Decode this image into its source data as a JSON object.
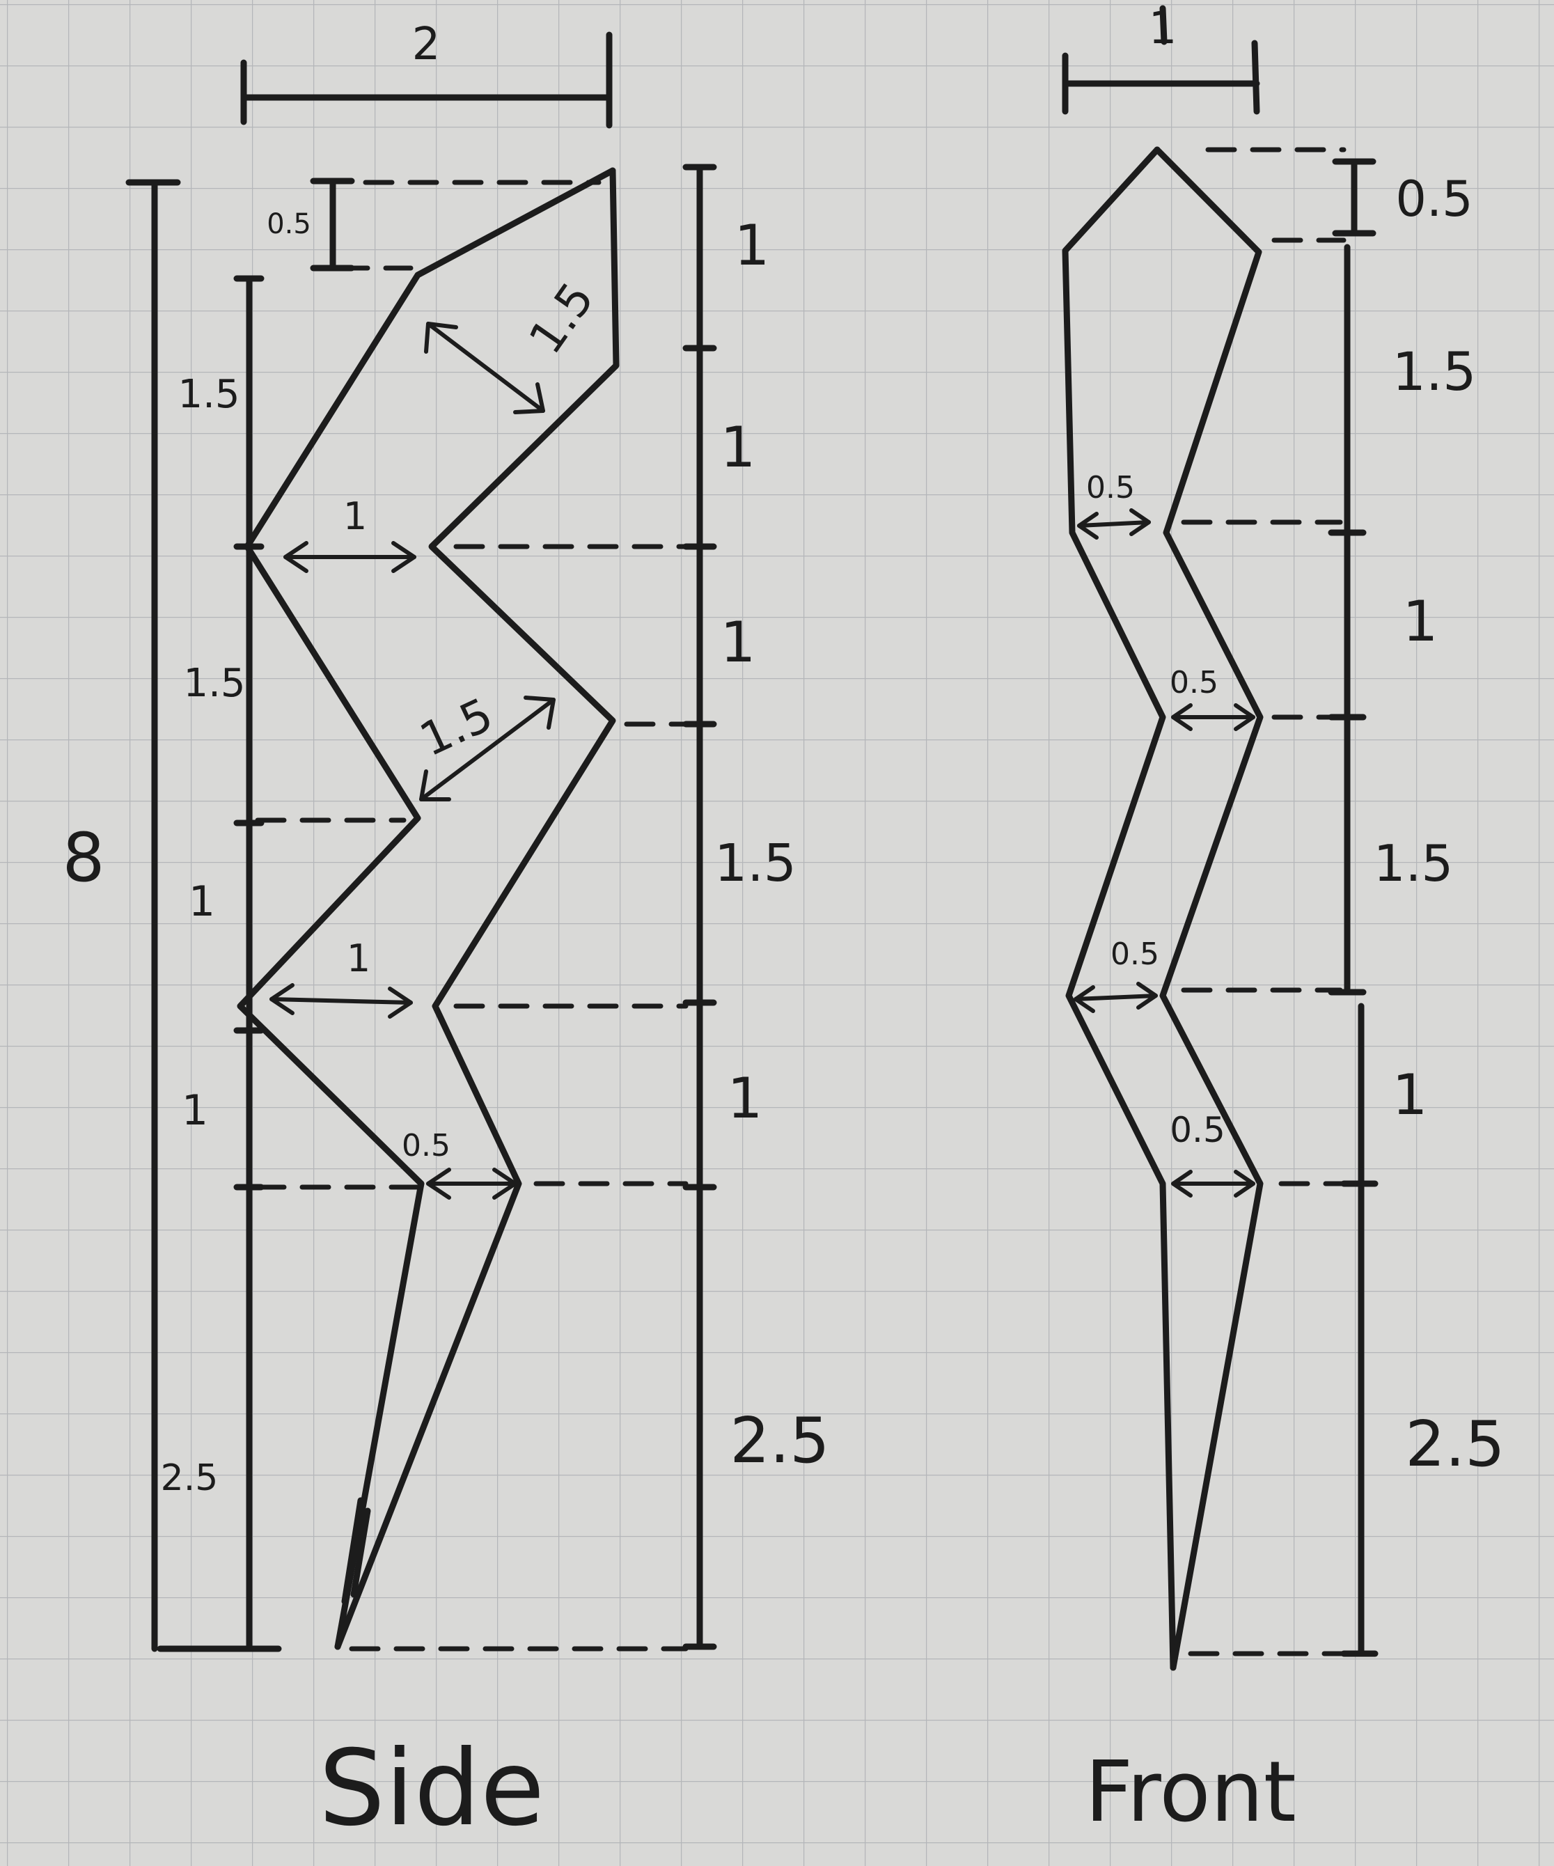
{
  "paper": {
    "background": "#d9d9d7",
    "grid": "#b4b6b9",
    "ink": "#1c1c1c"
  },
  "side": {
    "caption": "Side",
    "total_height": "8",
    "width": "2",
    "left_dims": [
      "0.5",
      "1.5",
      "1.5",
      "1",
      "1",
      "2.5"
    ],
    "right_dims": [
      "1",
      "1",
      "1",
      "1.5",
      "1",
      "2.5"
    ],
    "inner": [
      "1.5",
      "1",
      "1.5",
      "1",
      "0.5"
    ]
  },
  "front": {
    "caption": "Front",
    "width": "1",
    "right_dims": [
      "0.5",
      "1.5",
      "1",
      "1.5",
      "1",
      "2.5"
    ],
    "inner": [
      "0.5",
      "0.5",
      "0.5",
      "0.5"
    ]
  }
}
